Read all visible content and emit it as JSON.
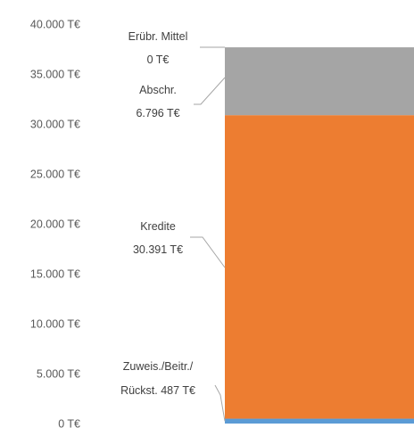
{
  "chart_data": {
    "type": "bar",
    "stacked": true,
    "title": "",
    "xlabel": "",
    "ylabel": "",
    "ylim": [
      0,
      40000
    ],
    "y_ticks": [
      "0 T€",
      "5.000 T€",
      "10.000 T€",
      "15.000 T€",
      "20.000 T€",
      "25.000 T€",
      "30.000 T€",
      "35.000 T€",
      "40.000 T€"
    ],
    "grid": false,
    "legend": "none",
    "series": [
      {
        "line1": "Zuweis./Beitr./",
        "line2": "Rückst. 487 T€",
        "value": 487,
        "color": "#5b9bd5"
      },
      {
        "line1": "Kredite",
        "line2": "30.391 T€",
        "value": 30391,
        "color": "#ed7d31"
      },
      {
        "line1": "Abschr.",
        "line2": "6.796 T€",
        "value": 6796,
        "color": "#a5a5a5"
      },
      {
        "line1": "Erübr. Mittel",
        "line2": "0 T€",
        "value": 0,
        "color": "#ffc000"
      }
    ]
  }
}
